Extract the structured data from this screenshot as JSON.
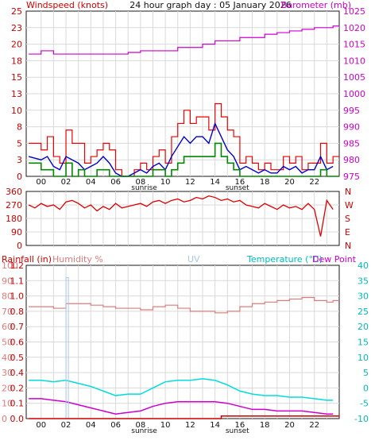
{
  "header": {
    "wind_title": "Windspeed (knots)",
    "date_title": "24 hour graph day : 05 January 2026",
    "baro_title": "Barometer (mb)"
  },
  "colors": {
    "frame": "#1a1a1a",
    "grid": "#d9d9d9",
    "gust": "#ee0000",
    "avg": "#0000cc",
    "min": "#008800",
    "baro": "#cc00cc",
    "dir": "#dd0000",
    "rain": "#cc0000",
    "humidity": "#e07a7a",
    "uv": "#a8c8e8",
    "temp": "#00dddd",
    "dew": "#cc00cc"
  },
  "shared": {
    "hour_ticks": [
      "00",
      "02",
      "04",
      "06",
      "08",
      "10",
      "12",
      "14",
      "16",
      "18",
      "20",
      "22"
    ],
    "sunrise_label": "sunrise",
    "sunset_label": "sunset",
    "sunrise_hour": 8.3,
    "sunset_hour": 15.8
  },
  "chart_data": [
    {
      "id": "wind",
      "type": "line",
      "y_left_ticks": [
        "0",
        "3",
        "5",
        "8",
        "10",
        "13",
        "15",
        "18",
        "20",
        "23",
        "25"
      ],
      "y_right_ticks": [
        "975",
        "980",
        "985",
        "990",
        "995",
        "1000",
        "1005",
        "1010",
        "1015",
        "1020",
        "1025"
      ],
      "ylim_left": [
        0,
        25
      ],
      "ylim_right": [
        975,
        1025
      ],
      "series": [
        {
          "key": "gust",
          "x": [
            -1,
            0,
            0.5,
            1,
            1.5,
            2,
            2.5,
            3,
            3.5,
            4,
            4.5,
            5,
            5.5,
            6,
            6.5,
            7,
            7.5,
            8,
            8.5,
            9,
            9.5,
            10,
            10.5,
            11,
            11.5,
            12,
            12.5,
            13,
            13.5,
            14,
            14.5,
            15,
            15.5,
            16,
            16.5,
            17,
            17.5,
            18,
            18.5,
            19,
            19.5,
            20,
            20.5,
            21,
            21.5,
            22,
            22.5,
            23,
            23.5
          ],
          "y": [
            5,
            4,
            6,
            3,
            2,
            7,
            5,
            5,
            2,
            3,
            4,
            5,
            4,
            1,
            0,
            0,
            1,
            2,
            1,
            3,
            4,
            2,
            6,
            8,
            10,
            8,
            9,
            9,
            7,
            11,
            9,
            7,
            6,
            2,
            3,
            2,
            1,
            2,
            1,
            1,
            3,
            2,
            3,
            1,
            2,
            2,
            5,
            2,
            3
          ]
        },
        {
          "key": "avg",
          "x": [
            -1,
            0,
            0.5,
            1,
            1.5,
            2,
            2.5,
            3,
            3.5,
            4,
            4.5,
            5,
            5.5,
            6,
            6.5,
            7,
            7.5,
            8,
            8.5,
            9,
            9.5,
            10,
            10.5,
            11,
            11.5,
            12,
            12.5,
            13,
            13.5,
            14,
            14.5,
            15,
            15.5,
            16,
            16.5,
            17,
            17.5,
            18,
            18.5,
            19,
            19.5,
            20,
            20.5,
            21,
            21.5,
            22,
            22.5,
            23,
            23.5
          ],
          "y": [
            3,
            2.5,
            3,
            1.5,
            1,
            3,
            2.5,
            2,
            1,
            1.5,
            2,
            3,
            2,
            0.5,
            0,
            0,
            0.5,
            1,
            0.5,
            1.5,
            2,
            1,
            3,
            4.5,
            6,
            5,
            6,
            6,
            5,
            8,
            6,
            4,
            3,
            1,
            1.5,
            1,
            0.5,
            1,
            0.5,
            0.5,
            1.5,
            1,
            1.5,
            0.5,
            1,
            1,
            3,
            1,
            1.5
          ]
        },
        {
          "key": "min",
          "x": [
            -1,
            0,
            0.5,
            1,
            1.5,
            2,
            2.5,
            3,
            3.5,
            4,
            4.5,
            5,
            5.5,
            6,
            6.5,
            7,
            7.5,
            8,
            8.5,
            9,
            9.5,
            10,
            10.5,
            11,
            11.5,
            12,
            12.5,
            13,
            13.5,
            14,
            14.5,
            15,
            15.5,
            16,
            16.5,
            17,
            17.5,
            18,
            18.5,
            19,
            19.5,
            20,
            20.5,
            21,
            21.5,
            22,
            22.5,
            23,
            23.5
          ],
          "y": [
            2,
            1,
            1,
            0,
            0,
            2,
            0,
            1,
            0,
            0,
            1,
            1,
            0,
            0,
            0,
            0,
            0,
            0,
            0,
            1,
            1,
            0,
            1,
            2,
            3,
            3,
            3,
            3,
            3,
            5,
            3,
            2,
            1,
            0,
            0,
            0,
            0,
            0,
            0,
            0,
            0,
            0,
            0,
            0,
            0,
            0,
            1,
            0,
            0
          ]
        },
        {
          "key": "baro",
          "x": [
            -1,
            0,
            1,
            2,
            3,
            4,
            5,
            6,
            7,
            8,
            9,
            10,
            11,
            12,
            13,
            14,
            15,
            16,
            17,
            18,
            19,
            20,
            21,
            22,
            23,
            23.5
          ],
          "y": [
            1012,
            1013,
            1012,
            1012,
            1012,
            1012,
            1012,
            1012,
            1012.5,
            1013,
            1013,
            1013,
            1014,
            1014,
            1015,
            1016,
            1016,
            1017,
            1017,
            1018,
            1018.5,
            1019,
            1019.5,
            1020,
            1020,
            1020.5
          ]
        }
      ]
    },
    {
      "id": "direction",
      "type": "line",
      "y_left_ticks": [
        "0",
        "90",
        "180",
        "270",
        "360"
      ],
      "y_right_ticks": [
        "N",
        "E",
        "S",
        "W",
        "N"
      ],
      "ylim": [
        0,
        360
      ],
      "series": [
        {
          "key": "dir",
          "x": [
            -1,
            -0.5,
            0,
            0.5,
            1,
            1.5,
            2,
            2.5,
            3,
            3.5,
            4,
            4.5,
            5,
            5.5,
            6,
            6.5,
            7,
            7.5,
            8,
            8.5,
            9,
            9.5,
            10,
            10.5,
            11,
            11.5,
            12,
            12.5,
            13,
            13.5,
            14,
            14.5,
            15,
            15.5,
            16,
            16.5,
            17,
            17.5,
            18,
            18.5,
            19,
            19.5,
            20,
            20.5,
            21,
            21.5,
            22,
            22.5,
            23,
            23.5
          ],
          "y": [
            270,
            250,
            280,
            260,
            270,
            240,
            290,
            300,
            280,
            250,
            270,
            230,
            260,
            240,
            280,
            250,
            260,
            270,
            280,
            260,
            290,
            300,
            280,
            300,
            310,
            290,
            300,
            320,
            310,
            330,
            320,
            300,
            310,
            290,
            300,
            270,
            260,
            250,
            280,
            260,
            240,
            270,
            250,
            260,
            240,
            280,
            240,
            60,
            300,
            240
          ]
        }
      ]
    },
    {
      "id": "rain_hum_uv_temp",
      "type": "line",
      "rain_label": "Rainfall (in)",
      "humidity_label": "Humidity %",
      "uv_label": "UV",
      "temp_label": "Temperature (°C)",
      "dew_label": "Dew Point",
      "humidity_ticks": [
        "0",
        "10",
        "20",
        "30",
        "40",
        "50",
        "60",
        "70",
        "80",
        "90",
        "100"
      ],
      "rain_ticks": [
        "0.0",
        "0.1",
        "0.2",
        "0.4",
        "0.5",
        "0.6",
        "0.7",
        "0.8",
        "1.0",
        "1.1",
        "1.2"
      ],
      "temp_ticks": [
        "-10",
        "-5",
        "0",
        "5",
        "10",
        "15",
        "20",
        "25",
        "30",
        "35",
        "40"
      ],
      "temp_ylim": [
        -10,
        40
      ],
      "humidity_ylim": [
        0,
        100
      ],
      "series": [
        {
          "key": "humidity",
          "x": [
            -1,
            0,
            1,
            2,
            3,
            4,
            5,
            6,
            7,
            8,
            9,
            10,
            11,
            12,
            13,
            14,
            15,
            16,
            17,
            18,
            19,
            20,
            21,
            22,
            23,
            23.5
          ],
          "y": [
            73,
            73,
            72,
            75,
            75,
            74,
            73,
            72,
            72,
            71,
            73,
            74,
            72,
            70,
            70,
            69,
            70,
            73,
            75,
            76,
            77,
            78,
            79,
            77,
            76,
            77
          ]
        },
        {
          "key": "temp",
          "x": [
            -1,
            0,
            1,
            2,
            3,
            4,
            5,
            6,
            7,
            8,
            9,
            10,
            11,
            12,
            13,
            14,
            15,
            16,
            17,
            18,
            19,
            20,
            21,
            22,
            23,
            23.5
          ],
          "y": [
            2.5,
            2.5,
            2,
            2.5,
            1.5,
            0.5,
            -1,
            -2.5,
            -2,
            -2,
            0,
            2,
            2.5,
            2.5,
            3,
            2.5,
            1,
            -1,
            -2,
            -2.5,
            -2.5,
            -3,
            -3,
            -3.5,
            -4,
            -4
          ]
        },
        {
          "key": "dew",
          "x": [
            -1,
            0,
            1,
            2,
            3,
            4,
            5,
            6,
            7,
            8,
            9,
            10,
            11,
            12,
            13,
            14,
            15,
            16,
            17,
            18,
            19,
            20,
            21,
            22,
            23,
            23.5
          ],
          "y": [
            -3.5,
            -3.5,
            -4,
            -4.5,
            -5.5,
            -6.5,
            -7.5,
            -8.5,
            -8,
            -7.5,
            -6,
            -5,
            -4.5,
            -4.5,
            -4.5,
            -4.5,
            -5,
            -6,
            -7,
            -7,
            -7.5,
            -7.5,
            -7.5,
            -8,
            -8.5,
            -8.5
          ]
        },
        {
          "key": "uv",
          "x": [
            2.1
          ],
          "y": [
            0.92
          ]
        },
        {
          "key": "rain",
          "x": [
            -1,
            14.5,
            23.5
          ],
          "y": [
            0,
            0.02,
            0.02
          ]
        }
      ]
    }
  ]
}
